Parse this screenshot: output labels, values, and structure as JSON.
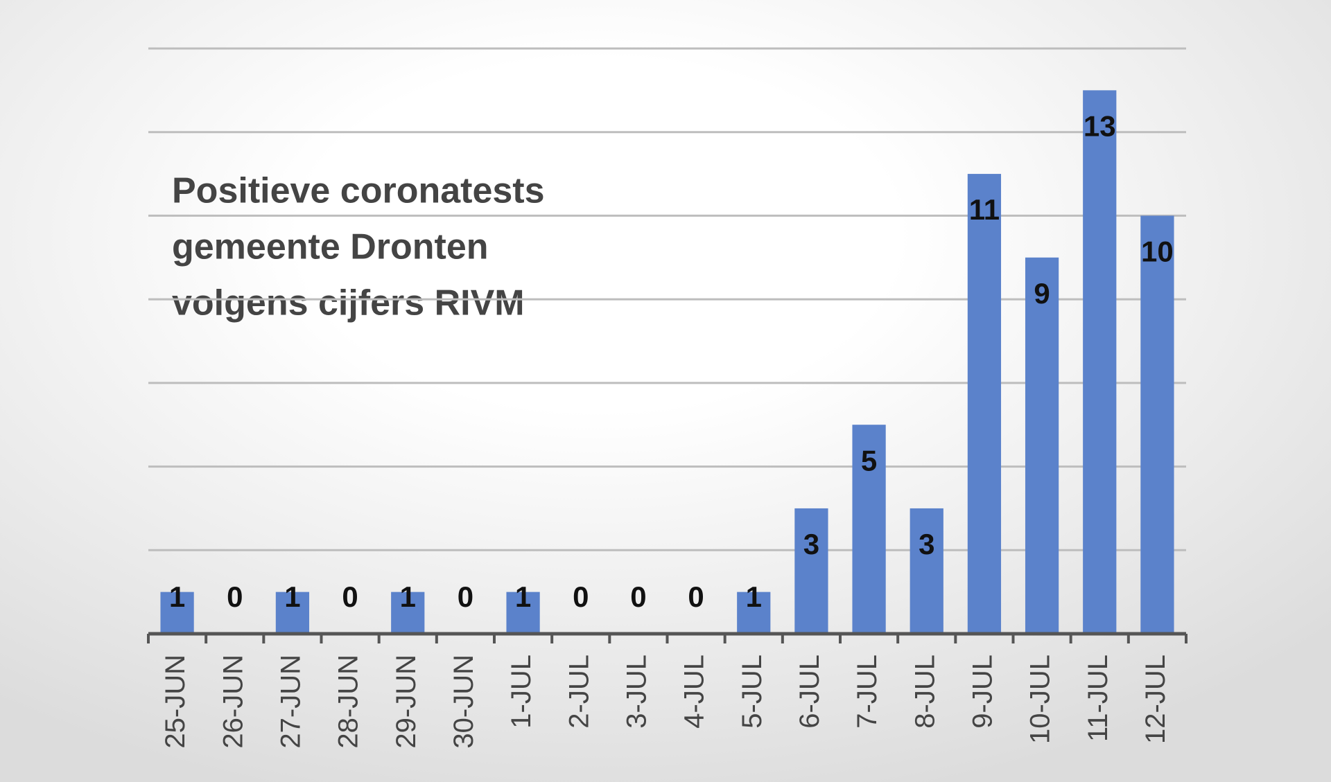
{
  "chart_data": {
    "type": "bar",
    "title": [
      "Positieve coronatests",
      "gemeente Dronten",
      "volgens cijfers RIVM"
    ],
    "categories": [
      "25-JUN",
      "26-JUN",
      "27-JUN",
      "28-JUN",
      "29-JUN",
      "30-JUN",
      "1-JUL",
      "2-JUL",
      "3-JUL",
      "4-JUL",
      "5-JUL",
      "6-JUL",
      "7-JUL",
      "8-JUL",
      "9-JUL",
      "10-JUL",
      "11-JUL",
      "12-JUL"
    ],
    "values": [
      1,
      0,
      1,
      0,
      1,
      0,
      1,
      0,
      0,
      0,
      1,
      3,
      5,
      3,
      11,
      9,
      13,
      10
    ],
    "color": "#5b82cb",
    "ylim": [
      0,
      14
    ],
    "yticks": [
      0,
      2,
      4,
      6,
      8,
      10,
      12,
      14
    ],
    "grid": true
  }
}
